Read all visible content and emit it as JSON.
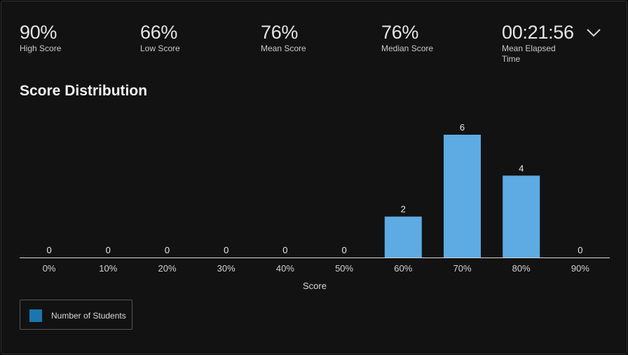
{
  "stats": [
    {
      "value": "90%",
      "label": "High Score"
    },
    {
      "value": "66%",
      "label": "Low Score"
    },
    {
      "value": "76%",
      "label": "Mean Score"
    },
    {
      "value": "76%",
      "label": "Median Score"
    },
    {
      "value": "00:21:56",
      "label": "Mean Elapsed Time"
    }
  ],
  "chart_data": {
    "type": "bar",
    "title": "Score Distribution",
    "xlabel": "Score",
    "ylabel": "",
    "categories": [
      "0%",
      "10%",
      "20%",
      "30%",
      "40%",
      "50%",
      "60%",
      "70%",
      "80%",
      "90%"
    ],
    "series": [
      {
        "name": "Number of Students",
        "values": [
          0,
          0,
          0,
          0,
          0,
          0,
          2,
          6,
          4,
          0
        ],
        "color": "#5eaae3"
      }
    ],
    "legend_color": "#1b76b0",
    "ylim": [
      0,
      6
    ],
    "grid": false,
    "legend_position": "bottom-left"
  }
}
